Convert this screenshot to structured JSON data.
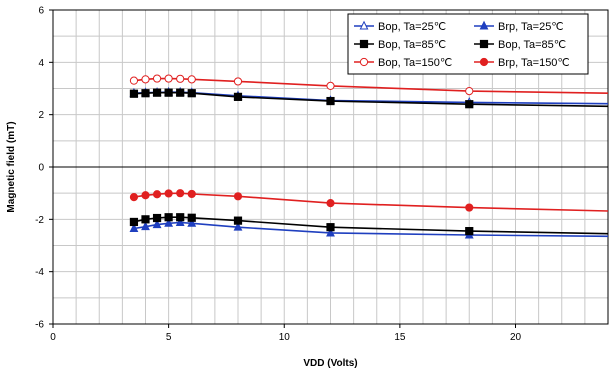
{
  "chart_data": {
    "type": "line",
    "xlabel": "VDD (Volts)",
    "ylabel": "Magnetic field (mT)",
    "xlim": [
      0,
      24
    ],
    "ylim": [
      -6,
      6
    ],
    "x_ticks": [
      0,
      5,
      10,
      15,
      20
    ],
    "y_ticks": [
      -6,
      -4,
      -2,
      0,
      2,
      4,
      6
    ],
    "grid": true,
    "legend_position": "top-right",
    "series": [
      {
        "name": "Bop, Ta=25℃",
        "color": "#1f3fbf",
        "marker": "triangle-open",
        "x": [
          3.5,
          4,
          4.5,
          5,
          5.5,
          6,
          8,
          12,
          18,
          24
        ],
        "y": [
          2.82,
          2.84,
          2.85,
          2.86,
          2.86,
          2.84,
          2.72,
          2.54,
          2.47,
          2.42
        ]
      },
      {
        "name": "Brp, Ta=25℃",
        "color": "#1f3fbf",
        "marker": "triangle-filled",
        "x": [
          3.5,
          4,
          4.5,
          5,
          5.5,
          6,
          8,
          12,
          18,
          24
        ],
        "y": [
          -2.35,
          -2.28,
          -2.2,
          -2.15,
          -2.12,
          -2.15,
          -2.3,
          -2.52,
          -2.6,
          -2.65
        ]
      },
      {
        "name": "Bop, Ta=85℃",
        "color": "#000000",
        "marker": "square-filled",
        "x": [
          3.5,
          4,
          4.5,
          5,
          5.5,
          6,
          8,
          12,
          18,
          24
        ],
        "y": [
          2.8,
          2.82,
          2.84,
          2.84,
          2.84,
          2.82,
          2.68,
          2.52,
          2.4,
          2.32
        ]
      },
      {
        "name": "Bop, Ta=85℃",
        "color": "#000000",
        "marker": "square-filled",
        "x": [
          3.5,
          4,
          4.5,
          5,
          5.5,
          6,
          8,
          12,
          18,
          24
        ],
        "y": [
          -2.1,
          -2.0,
          -1.95,
          -1.92,
          -1.92,
          -1.94,
          -2.05,
          -2.3,
          -2.45,
          -2.55
        ]
      },
      {
        "name": "Bop, Ta=150℃",
        "color": "#e02020",
        "marker": "circle-open",
        "x": [
          3.5,
          4,
          4.5,
          5,
          5.5,
          6,
          8,
          12,
          18,
          24
        ],
        "y": [
          3.3,
          3.35,
          3.38,
          3.38,
          3.37,
          3.35,
          3.27,
          3.1,
          2.9,
          2.82
        ]
      },
      {
        "name": "Brp, Ta=150℃",
        "color": "#e02020",
        "marker": "circle-filled",
        "x": [
          3.5,
          4,
          4.5,
          5,
          5.5,
          6,
          8,
          12,
          18,
          24
        ],
        "y": [
          -1.15,
          -1.08,
          -1.04,
          -1.01,
          -1.0,
          -1.03,
          -1.12,
          -1.38,
          -1.55,
          -1.68
        ]
      }
    ]
  }
}
